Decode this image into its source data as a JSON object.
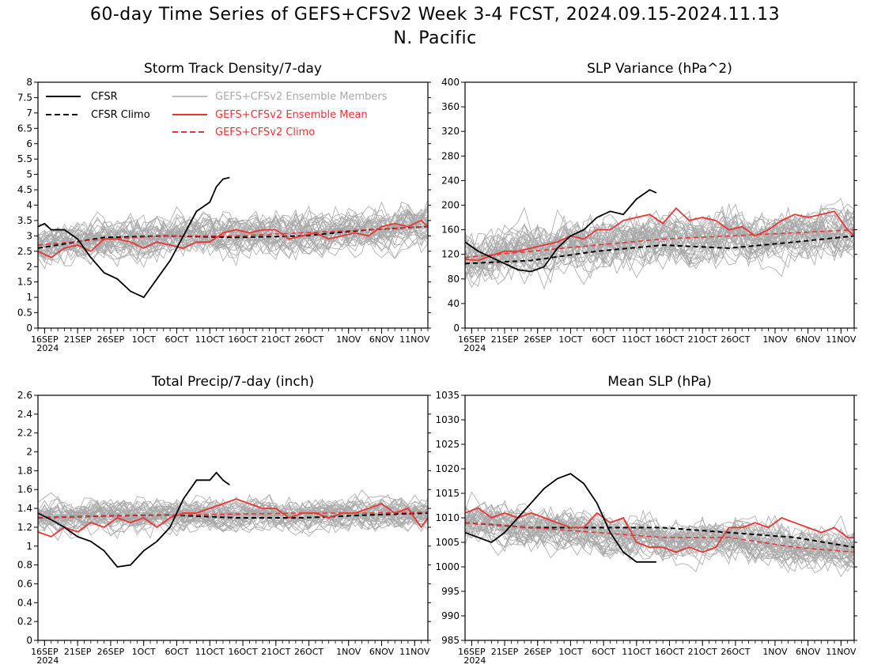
{
  "figure": {
    "title_line1": "60-day Time Series of GEFS+CFSv2 Week 3-4 FCST, 2024.09.15-2024.11.13",
    "title_line2": "N. Pacific"
  },
  "legend": {
    "cfsr": "CFSR",
    "cfsr_climo": "CFSR Climo",
    "members": "GEFS+CFSv2 Ensemble Members",
    "ens_mean": "GEFS+CFSv2 Ensemble Mean",
    "gefs_climo": "GEFS+CFSv2 Climo"
  },
  "colors": {
    "cfsr": "#000000",
    "members": "#a8a8a8",
    "ens_mean": "#ee3333",
    "gefs_climo": "#ee3333",
    "legend_members_text": "#a8a8a8",
    "legend_red_text": "#ee3333"
  },
  "x_axis": {
    "tick_labels": [
      "16SEP",
      "21SEP",
      "26SEP",
      "1OCT",
      "6OCT",
      "11OCT",
      "16OCT",
      "21OCT",
      "26OCT",
      "1NOV",
      "6NOV",
      "11NOV"
    ],
    "tick_days": [
      1,
      6,
      11,
      16,
      21,
      26,
      31,
      36,
      41,
      47,
      52,
      57
    ],
    "year_label": "2024",
    "day_range": [
      0,
      59
    ]
  },
  "chart_data": [
    {
      "type": "line",
      "title": "Storm Track Density/7-day",
      "ylim": [
        0,
        8
      ],
      "yticks": [
        "0",
        "0.5",
        "1",
        "1.5",
        "2",
        "2.5",
        "3",
        "3.5",
        "4",
        "4.5",
        "5",
        "5.5",
        "6",
        "6.5",
        "7",
        "7.5",
        "8"
      ],
      "ensemble_members": {
        "count": 40,
        "approx_center": 2.7,
        "approx_spread": 0.8
      },
      "series": [
        {
          "name": "CFSR",
          "x": [
            0,
            1,
            2,
            4,
            6,
            8,
            10,
            12,
            14,
            16,
            18,
            20,
            22,
            24,
            26,
            27,
            28,
            29
          ],
          "values": [
            3.3,
            3.4,
            3.2,
            3.2,
            2.9,
            2.3,
            1.8,
            1.6,
            1.2,
            1.0,
            1.6,
            2.2,
            3.0,
            3.8,
            4.1,
            4.6,
            4.85,
            4.9
          ]
        },
        {
          "name": "CFSR Climo",
          "x": [
            0,
            10,
            20,
            30,
            40,
            50,
            59
          ],
          "values": [
            2.6,
            2.95,
            3.0,
            2.95,
            3.0,
            3.2,
            3.3
          ]
        },
        {
          "name": "GEFS+CFSv2 Ensemble Mean",
          "x": [
            0,
            2,
            4,
            6,
            8,
            10,
            12,
            14,
            16,
            18,
            20,
            22,
            24,
            26,
            28,
            30,
            32,
            34,
            36,
            38,
            40,
            42,
            44,
            46,
            48,
            50,
            52,
            54,
            56,
            58,
            59
          ],
          "values": [
            2.5,
            2.3,
            2.6,
            2.7,
            2.5,
            2.9,
            2.9,
            2.8,
            2.6,
            2.8,
            2.7,
            2.6,
            2.8,
            2.8,
            3.1,
            3.2,
            3.1,
            3.2,
            3.2,
            2.9,
            3.0,
            3.1,
            2.9,
            3.0,
            3.1,
            3.0,
            3.3,
            3.4,
            3.3,
            3.5,
            3.3
          ]
        },
        {
          "name": "GEFS+CFSv2 Climo",
          "x": [
            0,
            10,
            20,
            30,
            40,
            50,
            59
          ],
          "values": [
            2.7,
            2.9,
            3.0,
            3.0,
            3.1,
            3.2,
            3.3
          ]
        }
      ]
    },
    {
      "type": "line",
      "title": "SLP Variance (hPa^2)",
      "ylim": [
        0,
        400
      ],
      "yticks": [
        "0",
        "40",
        "80",
        "120",
        "160",
        "200",
        "240",
        "280",
        "320",
        "360",
        "400"
      ],
      "ensemble_members": {
        "count": 40,
        "approx_center": 145,
        "approx_spread": 50
      },
      "series": [
        {
          "name": "CFSR",
          "x": [
            0,
            2,
            4,
            6,
            8,
            10,
            12,
            14,
            16,
            18,
            20,
            22,
            24,
            26,
            28,
            29
          ],
          "values": [
            140,
            125,
            115,
            105,
            95,
            92,
            100,
            130,
            150,
            160,
            180,
            190,
            185,
            210,
            225,
            220
          ]
        },
        {
          "name": "CFSR Climo",
          "x": [
            0,
            10,
            20,
            30,
            40,
            50,
            59
          ],
          "values": [
            105,
            110,
            125,
            135,
            130,
            140,
            150
          ]
        },
        {
          "name": "GEFS+CFSv2 Ensemble Mean",
          "x": [
            0,
            2,
            4,
            6,
            8,
            10,
            12,
            14,
            16,
            18,
            20,
            22,
            24,
            26,
            28,
            30,
            32,
            34,
            36,
            38,
            40,
            42,
            44,
            46,
            48,
            50,
            52,
            54,
            56,
            58,
            59
          ],
          "values": [
            112,
            110,
            118,
            125,
            125,
            130,
            135,
            140,
            150,
            145,
            160,
            160,
            175,
            180,
            185,
            170,
            195,
            175,
            180,
            175,
            160,
            165,
            150,
            160,
            175,
            185,
            180,
            185,
            190,
            160,
            150
          ]
        },
        {
          "name": "GEFS+CFSv2 Climo",
          "x": [
            0,
            10,
            20,
            30,
            40,
            50,
            59
          ],
          "values": [
            115,
            125,
            135,
            145,
            150,
            155,
            160
          ]
        }
      ]
    },
    {
      "type": "line",
      "title": "Total Precip/7-day (inch)",
      "ylim": [
        0,
        2.6
      ],
      "yticks": [
        "0",
        "0.2",
        "0.4",
        "0.6",
        "0.8",
        "1",
        "1.2",
        "1.4",
        "1.6",
        "1.8",
        "2",
        "2.2",
        "2.4",
        "2.6"
      ],
      "ensemble_members": {
        "count": 40,
        "approx_center": 1.3,
        "approx_spread": 0.2
      },
      "series": [
        {
          "name": "CFSR",
          "x": [
            0,
            2,
            4,
            6,
            8,
            10,
            12,
            14,
            16,
            18,
            20,
            22,
            24,
            26,
            27,
            28,
            29
          ],
          "values": [
            1.35,
            1.28,
            1.2,
            1.1,
            1.05,
            0.95,
            0.78,
            0.8,
            0.95,
            1.05,
            1.2,
            1.5,
            1.7,
            1.7,
            1.78,
            1.7,
            1.65
          ]
        },
        {
          "name": "CFSR Climo",
          "x": [
            0,
            10,
            20,
            30,
            40,
            50,
            59
          ],
          "values": [
            1.3,
            1.32,
            1.33,
            1.3,
            1.3,
            1.33,
            1.35
          ]
        },
        {
          "name": "GEFS+CFSv2 Ensemble Mean",
          "x": [
            0,
            2,
            4,
            6,
            8,
            10,
            12,
            14,
            16,
            18,
            20,
            22,
            24,
            26,
            28,
            30,
            32,
            34,
            36,
            38,
            40,
            42,
            44,
            46,
            48,
            50,
            52,
            54,
            56,
            58,
            59
          ],
          "values": [
            1.15,
            1.1,
            1.2,
            1.15,
            1.25,
            1.2,
            1.3,
            1.25,
            1.3,
            1.2,
            1.3,
            1.35,
            1.35,
            1.4,
            1.45,
            1.5,
            1.45,
            1.4,
            1.4,
            1.3,
            1.35,
            1.35,
            1.3,
            1.35,
            1.35,
            1.4,
            1.45,
            1.35,
            1.4,
            1.2,
            1.3
          ]
        },
        {
          "name": "GEFS+CFSv2 Climo",
          "x": [
            0,
            10,
            20,
            30,
            40,
            50,
            59
          ],
          "values": [
            1.3,
            1.32,
            1.33,
            1.34,
            1.35,
            1.35,
            1.36
          ]
        }
      ]
    },
    {
      "type": "line",
      "title": "Mean SLP (hPa)",
      "ylim": [
        985,
        1035
      ],
      "yticks": [
        "985",
        "990",
        "995",
        "1000",
        "1005",
        "1010",
        "1015",
        "1020",
        "1025",
        "1030",
        "1035"
      ],
      "ensemble_members": {
        "count": 40,
        "approx_center": 1008,
        "approx_spread": 5
      },
      "series": [
        {
          "name": "CFSR",
          "x": [
            0,
            2,
            4,
            6,
            8,
            10,
            12,
            14,
            16,
            18,
            20,
            22,
            24,
            26,
            28,
            29
          ],
          "values": [
            1007,
            1006,
            1005,
            1007,
            1010,
            1013,
            1016,
            1018,
            1019,
            1017,
            1013,
            1007,
            1003,
            1001,
            1001,
            1001
          ]
        },
        {
          "name": "CFSR Climo",
          "x": [
            0,
            10,
            20,
            30,
            40,
            50,
            59
          ],
          "values": [
            1009,
            1008,
            1008,
            1008,
            1007,
            1006,
            1004
          ]
        },
        {
          "name": "GEFS+CFSv2 Ensemble Mean",
          "x": [
            0,
            2,
            4,
            6,
            8,
            10,
            12,
            14,
            16,
            18,
            20,
            22,
            24,
            26,
            28,
            30,
            32,
            34,
            36,
            38,
            40,
            42,
            44,
            46,
            48,
            50,
            52,
            54,
            56,
            58,
            59
          ],
          "values": [
            1011,
            1012,
            1010,
            1011,
            1010,
            1011,
            1010,
            1009,
            1008,
            1008,
            1011,
            1009,
            1010,
            1005,
            1004,
            1004,
            1003,
            1004,
            1003,
            1004,
            1008,
            1008,
            1009,
            1008,
            1010,
            1009,
            1008,
            1007,
            1008,
            1006,
            1006
          ]
        },
        {
          "name": "GEFS+CFSv2 Climo",
          "x": [
            0,
            10,
            20,
            30,
            40,
            50,
            59
          ],
          "values": [
            1009,
            1008,
            1007,
            1006,
            1006,
            1004,
            1003
          ]
        }
      ]
    }
  ]
}
